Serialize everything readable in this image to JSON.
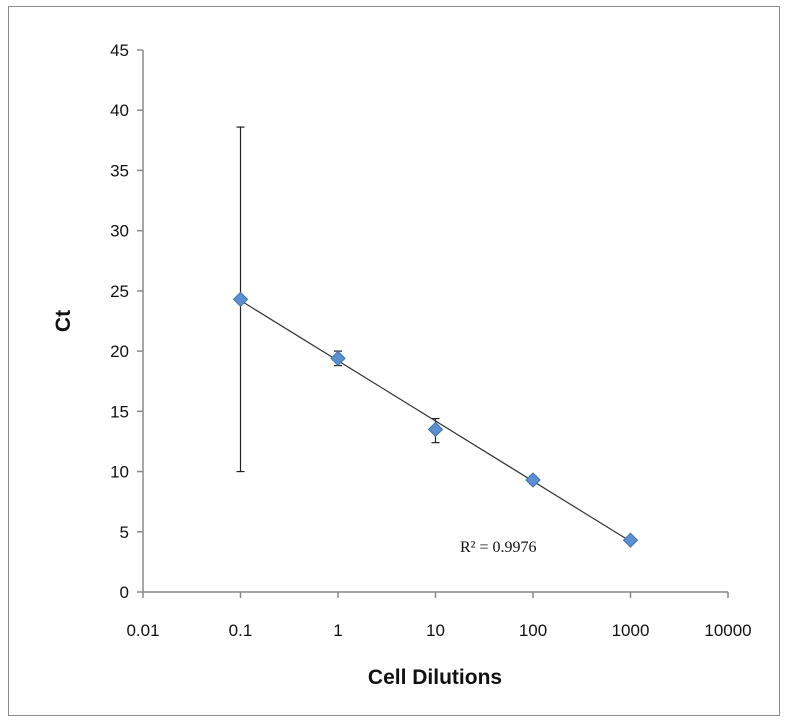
{
  "chart_data": {
    "type": "scatter",
    "title": "",
    "xlabel": "Cell Dilutions",
    "ylabel": "Ct",
    "xscale": "log",
    "xlim": [
      0.01,
      10000
    ],
    "ylim": [
      0,
      45
    ],
    "x_ticks": [
      0.01,
      0.1,
      1,
      10,
      100,
      1000,
      10000
    ],
    "x_tick_labels": [
      "0.01",
      "0.1",
      "1",
      "10",
      "100",
      "1000",
      "10000"
    ],
    "y_ticks": [
      0,
      5,
      10,
      15,
      20,
      25,
      30,
      35,
      40,
      45
    ],
    "y_tick_labels": [
      "0",
      "5",
      "10",
      "15",
      "20",
      "25",
      "30",
      "35",
      "40",
      "45"
    ],
    "grid": false,
    "legend": false,
    "series": [
      {
        "marker": "diamond",
        "color": "#5b8fd0",
        "points": [
          {
            "x": 0.1,
            "y": 24.3,
            "err_low": 10.0,
            "err_high": 38.6
          },
          {
            "x": 1,
            "y": 19.4,
            "err_low": 18.8,
            "err_high": 20.0
          },
          {
            "x": 10,
            "y": 13.5,
            "err_low": 12.4,
            "err_high": 14.4
          },
          {
            "x": 100,
            "y": 9.3,
            "err_low": 9.0,
            "err_high": 9.6
          },
          {
            "x": 1000,
            "y": 4.3,
            "err_low": 4.2,
            "err_high": 4.4
          }
        ]
      }
    ],
    "trendline": {
      "type": "logarithmic",
      "color": "#333333",
      "x_start": 0.1,
      "y_start": 24.2,
      "x_end": 1000,
      "y_end": 4.2
    },
    "annotations": [
      {
        "text": "R² = 0.9976"
      }
    ]
  }
}
